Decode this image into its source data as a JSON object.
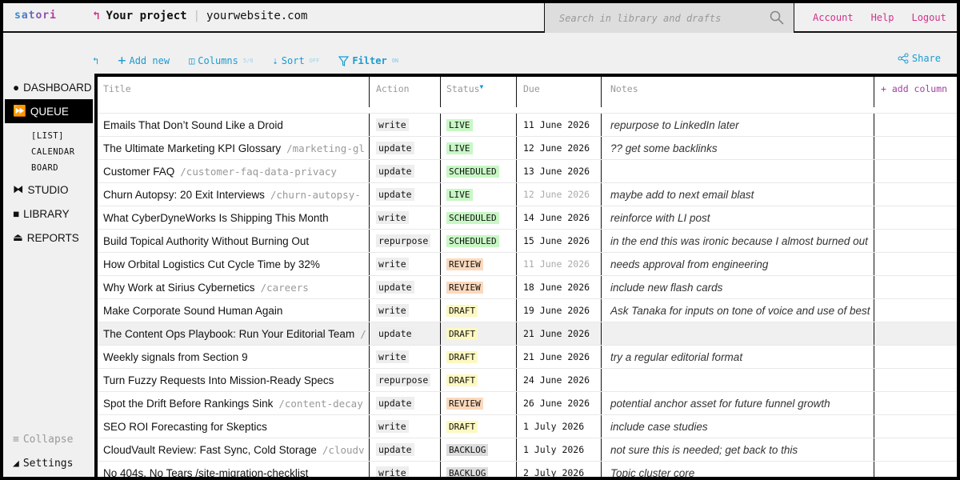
{
  "header": {
    "logo": "satori",
    "project": "Your project",
    "site": "yourwebsite.com",
    "search_placeholder": "Search in library and drafts",
    "links": [
      "Account",
      "Help",
      "Logout"
    ]
  },
  "colors": {
    "accent": "#1a9bd0",
    "pink": "#d2308a",
    "LIVE": "#c8f7c5",
    "SCHEDULED": "#c8f7c5",
    "REVIEW": "#fcd9bd",
    "DRAFT": "#fdf8c0",
    "BACKLOG": "#dddddd"
  },
  "toolbar": {
    "add": "Add new",
    "columns": "Columns",
    "columns_count": "5/8",
    "sort": "Sort",
    "sort_state": "OFF",
    "filter": "Filter",
    "filter_state": "ON",
    "share": "Share"
  },
  "sidebar": {
    "items": [
      {
        "label": "DASHBOARD",
        "icon": "circle-icon"
      },
      {
        "label": "QUEUE",
        "icon": "fast-forward-icon",
        "active": true
      },
      {
        "label": "STUDIO",
        "icon": "bowtie-icon"
      },
      {
        "label": "LIBRARY",
        "icon": "square-icon"
      },
      {
        "label": "REPORTS",
        "icon": "eject-icon"
      }
    ],
    "queue_views": [
      "[LIST]",
      "CALENDAR",
      "BOARD"
    ],
    "collapse": "Collapse",
    "settings": "Settings"
  },
  "table": {
    "columns": [
      "Title",
      "Action",
      "Status",
      "Due",
      "Notes"
    ],
    "add_column": "+ add column",
    "rows": [
      {
        "title": "Emails That Don’t Sound Like a Droid",
        "slug": "",
        "action": "write",
        "status": "LIVE",
        "due": "11 June 2026",
        "notes": "repurpose to LinkedIn later"
      },
      {
        "title": "The Ultimate Marketing KPI Glossary",
        "slug": "/marketing-gl",
        "action": "update",
        "status": "LIVE",
        "due": "12 June 2026",
        "notes": "?? get some backlinks"
      },
      {
        "title": "Customer FAQ",
        "slug": "/customer-faq-data-privacy",
        "action": "update",
        "status": "SCHEDULED",
        "due": "13 June 2026",
        "notes": ""
      },
      {
        "title": "Churn Autopsy: 20 Exit Interviews",
        "slug": "/churn-autopsy-",
        "action": "update",
        "status": "LIVE",
        "due": "12 June 2026",
        "past": true,
        "notes": "maybe add to next email blast"
      },
      {
        "title": "What CyberDyneWorks Is Shipping This Month",
        "slug": "",
        "action": "write",
        "status": "SCHEDULED",
        "due": "14 June 2026",
        "notes": "reinforce with LI post"
      },
      {
        "title": "Build Topical Authority Without Burning Out",
        "slug": "",
        "action": "repurpose",
        "status": "SCHEDULED",
        "due": "15 June 2026",
        "notes": "in the end this was ironic because I almost burned out"
      },
      {
        "title": "How Orbital Logistics Cut Cycle Time by 32%",
        "slug": "",
        "action": "write",
        "status": "REVIEW",
        "due": "11 June 2026",
        "past": true,
        "notes": "needs approval from engineering"
      },
      {
        "title": "Why Work at Sirius Cybernetics",
        "slug": "/careers",
        "action": "update",
        "status": "REVIEW",
        "due": "18 June 2026",
        "notes": "include new flash cards"
      },
      {
        "title": "Make Corporate Sound Human Again",
        "slug": "",
        "action": "write",
        "status": "DRAFT",
        "due": "19 June 2026",
        "notes": "Ask Tanaka for inputs on tone of voice and use of best"
      },
      {
        "title": "The Content Ops Playbook: Run Your Editorial Team",
        "slug": "/",
        "action": "update",
        "status": "DRAFT",
        "due": "21 June 2026",
        "notes": "",
        "highlight": true
      },
      {
        "title": "Weekly signals from Section 9",
        "slug": "",
        "action": "write",
        "status": "DRAFT",
        "due": "21 June 2026",
        "notes": "try a regular editorial format"
      },
      {
        "title": "Turn Fuzzy Requests Into Mission-Ready Specs",
        "slug": "",
        "action": "repurpose",
        "status": "DRAFT",
        "due": "24 June 2026",
        "notes": ""
      },
      {
        "title": "Spot the Drift Before Rankings Sink",
        "slug": "/content-decay",
        "action": "update",
        "status": "REVIEW",
        "due": "26 June 2026",
        "notes": "potential anchor asset for future funnel growth"
      },
      {
        "title": "SEO ROI Forecasting for Skeptics",
        "slug": "",
        "action": "write",
        "status": "DRAFT",
        "due": "1 July 2026",
        "notes": "include case studies"
      },
      {
        "title": "CloudVault Review: Fast Sync, Cold Storage",
        "slug": "/cloudv",
        "action": "update",
        "status": "BACKLOG",
        "due": "1 July 2026",
        "notes": "not sure this is needed; get back to this"
      },
      {
        "title": "No 404s, No Tears /site-migration-checklist",
        "slug": "",
        "action": "write",
        "status": "BACKLOG",
        "due": "2 July 2026",
        "notes": "Topic cluster core"
      }
    ]
  }
}
